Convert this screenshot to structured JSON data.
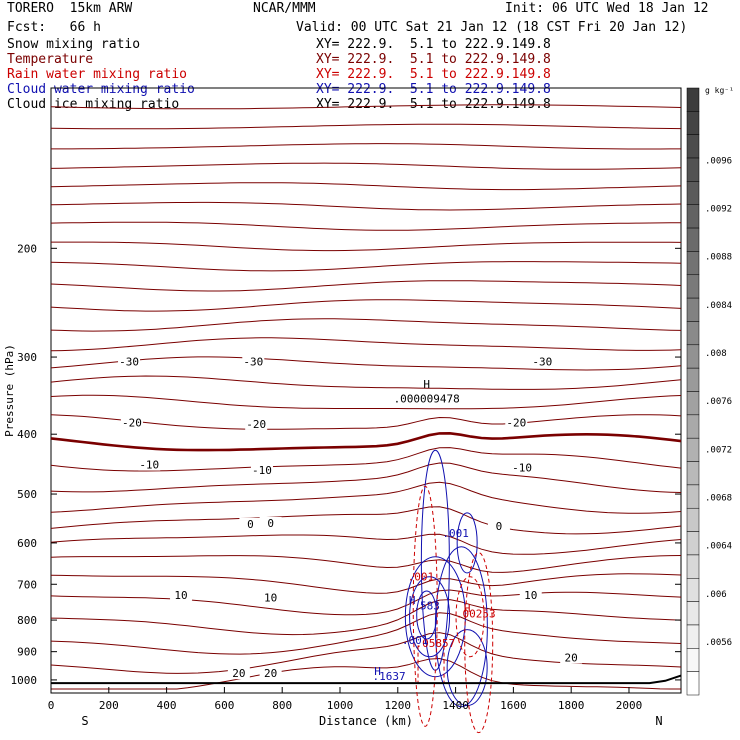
{
  "header": {
    "model": "TORERO  15km ARW",
    "source": "NCAR/MMM",
    "init": "Init: 06 UTC Wed 18 Jan 12",
    "fcst": "Fcst:   66 h",
    "valid": "Valid: 00 UTC Sat 21 Jan 12 (18 CST Fri 20 Jan 12)"
  },
  "legend": [
    {
      "label": "Snow mixing ratio",
      "xy": "XY= 222.9.  5.1 to 222.9.149.8",
      "color": "#000000"
    },
    {
      "label": "Temperature",
      "xy": "XY= 222.9.  5.1 to 222.9.149.8",
      "color": "#7a0000"
    },
    {
      "label": "Rain water mixing ratio",
      "xy": "XY= 222.9.  5.1 to 222.9.149.8",
      "color": "#cc0000"
    },
    {
      "label": "Cloud water mixing ratio",
      "xy": "XY= 222.9.  5.1 to 222.9.149.8",
      "color": "#1010b0"
    },
    {
      "label": "Cloud ice mixing ratio",
      "xy": "XY= 222.9.  5.1 to 222.9.149.8",
      "color": "#000000"
    }
  ],
  "colorbar": {
    "unit": "g kg⁻¹",
    "ticks": [
      ".0096",
      ".0092",
      ".0088",
      ".0084",
      ".008",
      ".0076",
      ".0072",
      ".0068",
      ".0064",
      ".006",
      ".0056"
    ]
  },
  "chart_data": {
    "type": "cross-section contour",
    "xlabel": "Distance (km)",
    "ylabel": "Pressure (hPa)",
    "xlim": [
      0,
      2180
    ],
    "ylim": [
      1050,
      110
    ],
    "y_scale": "log",
    "x_ticks": [
      0,
      200,
      400,
      600,
      800,
      1000,
      1200,
      1400,
      1600,
      1800,
      2000
    ],
    "y_ticks": [
      200,
      300,
      400,
      500,
      600,
      700,
      800,
      900,
      1000
    ],
    "x_end_labels": {
      "left": "S",
      "right": "N"
    },
    "temperature_labels": [
      {
        "x": 270,
        "p": 305,
        "text": "-30"
      },
      {
        "x": 700,
        "p": 305,
        "text": "-30"
      },
      {
        "x": 1700,
        "p": 305,
        "text": "-30"
      },
      {
        "x": 280,
        "p": 383,
        "text": "-20"
      },
      {
        "x": 710,
        "p": 385,
        "text": "-20"
      },
      {
        "x": 1610,
        "p": 383,
        "text": "-20"
      },
      {
        "x": 340,
        "p": 448,
        "text": "-10"
      },
      {
        "x": 730,
        "p": 457,
        "text": "-10"
      },
      {
        "x": 1630,
        "p": 453,
        "text": "-10"
      },
      {
        "x": 690,
        "p": 559,
        "text": "0"
      },
      {
        "x": 760,
        "p": 557,
        "text": "0"
      },
      {
        "x": 1550,
        "p": 563,
        "text": "0"
      },
      {
        "x": 450,
        "p": 728,
        "text": "10"
      },
      {
        "x": 760,
        "p": 736,
        "text": "10"
      },
      {
        "x": 1660,
        "p": 728,
        "text": "10"
      },
      {
        "x": 1800,
        "p": 920,
        "text": "20"
      },
      {
        "x": 650,
        "p": 975,
        "text": "20"
      },
      {
        "x": 760,
        "p": 975,
        "text": "20"
      }
    ],
    "extrema_labels": [
      {
        "x": 1300,
        "p": 332,
        "text": "H",
        "color": "#000000"
      },
      {
        "x": 1300,
        "p": 350,
        "text": ".000009478",
        "color": "#000000"
      },
      {
        "x": 1400,
        "p": 578,
        "text": ".001",
        "color": "#1010b0"
      },
      {
        "x": 1280,
        "p": 680,
        "text": ".001",
        "color": "#cc0000"
      },
      {
        "x": 1250,
        "p": 742,
        "text": "H",
        "color": "#1010b0"
      },
      {
        "x": 1300,
        "p": 757,
        "text": ".583",
        "color": "#1010b0"
      },
      {
        "x": 1440,
        "p": 765,
        "text": "H",
        "color": "#cc0000"
      },
      {
        "x": 1470,
        "p": 780,
        "text": ".00253",
        "color": "#cc0000"
      },
      {
        "x": 1330,
        "p": 872,
        "text": ".05857",
        "color": "#cc0000"
      },
      {
        "x": 1260,
        "p": 862,
        "text": ".001",
        "color": "#1010b0"
      },
      {
        "x": 1130,
        "p": 968,
        "text": "H",
        "color": "#1010b0"
      },
      {
        "x": 1170,
        "p": 985,
        "text": ".1637",
        "color": "#1010b0"
      }
    ]
  }
}
